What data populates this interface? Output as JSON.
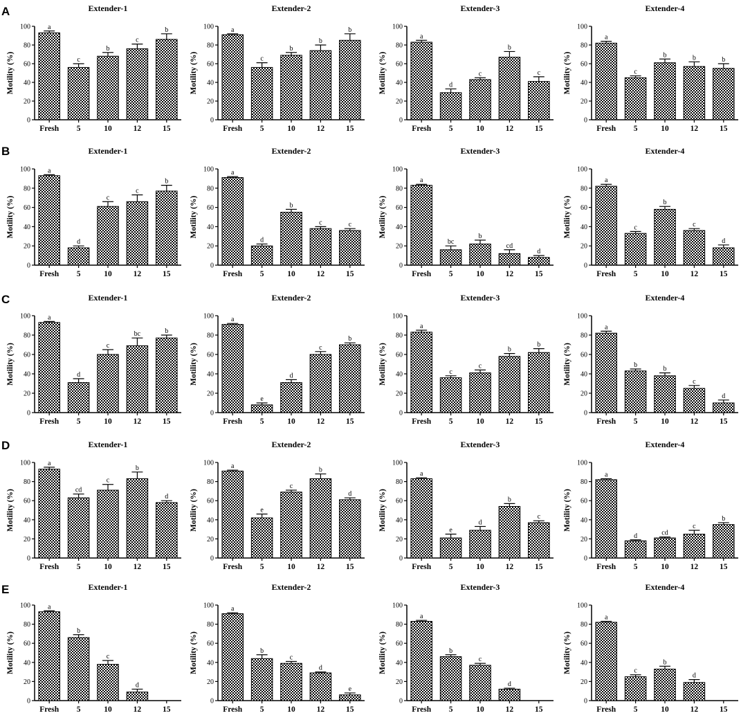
{
  "figure": {
    "row_labels": [
      "A",
      "B",
      "C",
      "D",
      "E"
    ],
    "colors": {
      "bar_fill": "#000000",
      "bar_background": "#ffffff",
      "axis": "#000000"
    }
  },
  "chart_data": [
    {
      "type": "bar",
      "row": "A",
      "title": "Extender-1",
      "ylabel": "Motility (%)",
      "xlabel": "",
      "ylim": [
        0,
        100
      ],
      "yticks": [
        0,
        20,
        40,
        60,
        80,
        100
      ],
      "categories": [
        "Fresh",
        "5",
        "10",
        "12",
        "15"
      ],
      "values": [
        93,
        56,
        68,
        76,
        86
      ],
      "errors": [
        2,
        4,
        4,
        5,
        6
      ],
      "letters": [
        "a",
        "c",
        "b",
        "c",
        "b"
      ]
    },
    {
      "type": "bar",
      "row": "A",
      "title": "Extender-2",
      "ylabel": "Motility (%)",
      "xlabel": "",
      "ylim": [
        0,
        100
      ],
      "yticks": [
        0,
        20,
        40,
        60,
        80,
        100
      ],
      "categories": [
        "Fresh",
        "5",
        "10",
        "12",
        "15"
      ],
      "values": [
        91,
        56,
        69,
        74,
        85
      ],
      "errors": [
        1,
        5,
        3,
        6,
        7
      ],
      "letters": [
        "a",
        "c",
        "b",
        "b",
        "b"
      ]
    },
    {
      "type": "bar",
      "row": "A",
      "title": "Extender-3",
      "ylabel": "Motility (%)",
      "xlabel": "",
      "ylim": [
        0,
        100
      ],
      "yticks": [
        0,
        20,
        40,
        60,
        80,
        100
      ],
      "categories": [
        "Fresh",
        "5",
        "10",
        "12",
        "15"
      ],
      "values": [
        83,
        29,
        43,
        67,
        41
      ],
      "errors": [
        2,
        4,
        2,
        6,
        5
      ],
      "letters": [
        "a",
        "d",
        "c",
        "b",
        "c"
      ]
    },
    {
      "type": "bar",
      "row": "A",
      "title": "Extender-4",
      "ylabel": "Motility (%)",
      "xlabel": "",
      "ylim": [
        0,
        100
      ],
      "yticks": [
        0,
        20,
        40,
        60,
        80,
        100
      ],
      "categories": [
        "Fresh",
        "5",
        "10",
        "12",
        "15"
      ],
      "values": [
        82,
        45,
        61,
        57,
        55
      ],
      "errors": [
        2,
        2,
        4,
        5,
        5
      ],
      "letters": [
        "a",
        "c",
        "b",
        "b",
        "b"
      ]
    },
    {
      "type": "bar",
      "row": "B",
      "title": "Extender-1",
      "ylabel": "Motility (%)",
      "xlabel": "",
      "ylim": [
        0,
        100
      ],
      "yticks": [
        0,
        20,
        40,
        60,
        80,
        100
      ],
      "categories": [
        "Fresh",
        "5",
        "10",
        "12",
        "15"
      ],
      "values": [
        93,
        18,
        61,
        66,
        77
      ],
      "errors": [
        1,
        2,
        5,
        7,
        6
      ],
      "letters": [
        "a",
        "d",
        "c",
        "c",
        "b"
      ]
    },
    {
      "type": "bar",
      "row": "B",
      "title": "Extender-2",
      "ylabel": "Motility (%)",
      "xlabel": "",
      "ylim": [
        0,
        100
      ],
      "yticks": [
        0,
        20,
        40,
        60,
        80,
        100
      ],
      "categories": [
        "Fresh",
        "5",
        "10",
        "12",
        "15"
      ],
      "values": [
        91,
        20,
        55,
        38,
        36
      ],
      "errors": [
        1,
        2,
        3,
        2,
        2
      ],
      "letters": [
        "a",
        "d",
        "b",
        "c",
        "c"
      ]
    },
    {
      "type": "bar",
      "row": "B",
      "title": "Extender-3",
      "ylabel": "Motility (%)",
      "xlabel": "",
      "ylim": [
        0,
        100
      ],
      "yticks": [
        0,
        20,
        40,
        60,
        80,
        100
      ],
      "categories": [
        "Fresh",
        "5",
        "10",
        "12",
        "15"
      ],
      "values": [
        83,
        16,
        22,
        12,
        8
      ],
      "errors": [
        1,
        4,
        4,
        4,
        2
      ],
      "letters": [
        "a",
        "bc",
        "b",
        "cd",
        "d"
      ]
    },
    {
      "type": "bar",
      "row": "B",
      "title": "Extender-4",
      "ylabel": "Motility (%)",
      "xlabel": "",
      "ylim": [
        0,
        100
      ],
      "yticks": [
        0,
        20,
        40,
        60,
        80,
        100
      ],
      "categories": [
        "Fresh",
        "5",
        "10",
        "12",
        "15"
      ],
      "values": [
        82,
        33,
        58,
        36,
        18
      ],
      "errors": [
        2,
        2,
        3,
        2,
        3
      ],
      "letters": [
        "a",
        "c",
        "b",
        "c",
        "d"
      ]
    },
    {
      "type": "bar",
      "row": "C",
      "title": "Extender-1",
      "ylabel": "Motility (%)",
      "xlabel": "",
      "ylim": [
        0,
        100
      ],
      "yticks": [
        0,
        20,
        40,
        60,
        80,
        100
      ],
      "categories": [
        "Fresh",
        "5",
        "10",
        "12",
        "15"
      ],
      "values": [
        93,
        31,
        60,
        69,
        77
      ],
      "errors": [
        1,
        4,
        5,
        8,
        3
      ],
      "letters": [
        "a",
        "d",
        "c",
        "bc",
        "b"
      ]
    },
    {
      "type": "bar",
      "row": "C",
      "title": "Extender-2",
      "ylabel": "Motility (%)",
      "xlabel": "",
      "ylim": [
        0,
        100
      ],
      "yticks": [
        0,
        20,
        40,
        60,
        80,
        100
      ],
      "categories": [
        "Fresh",
        "5",
        "10",
        "12",
        "15"
      ],
      "values": [
        91,
        8,
        31,
        60,
        70
      ],
      "errors": [
        1,
        2,
        3,
        3,
        2
      ],
      "letters": [
        "a",
        "e",
        "d",
        "c",
        "b"
      ]
    },
    {
      "type": "bar",
      "row": "C",
      "title": "Extender-3",
      "ylabel": "Motility (%)",
      "xlabel": "",
      "ylim": [
        0,
        100
      ],
      "yticks": [
        0,
        20,
        40,
        60,
        80,
        100
      ],
      "categories": [
        "Fresh",
        "5",
        "10",
        "12",
        "15"
      ],
      "values": [
        83,
        36,
        41,
        58,
        62
      ],
      "errors": [
        2,
        2,
        3,
        3,
        4
      ],
      "letters": [
        "a",
        "c",
        "c",
        "b",
        "b"
      ]
    },
    {
      "type": "bar",
      "row": "C",
      "title": "Extender-4",
      "ylabel": "Motility (%)",
      "xlabel": "",
      "ylim": [
        0,
        100
      ],
      "yticks": [
        0,
        20,
        40,
        60,
        80,
        100
      ],
      "categories": [
        "Fresh",
        "5",
        "10",
        "12",
        "15"
      ],
      "values": [
        82,
        43,
        38,
        25,
        10
      ],
      "errors": [
        2,
        2,
        3,
        3,
        3
      ],
      "letters": [
        "a",
        "b",
        "b",
        "c",
        "d"
      ]
    },
    {
      "type": "bar",
      "row": "D",
      "title": "Extender-1",
      "ylabel": "Motility (%)",
      "xlabel": "",
      "ylim": [
        0,
        100
      ],
      "yticks": [
        0,
        20,
        40,
        60,
        80,
        100
      ],
      "categories": [
        "Fresh",
        "5",
        "10",
        "12",
        "15"
      ],
      "values": [
        93,
        63,
        71,
        83,
        58
      ],
      "errors": [
        2,
        4,
        6,
        7,
        2
      ],
      "letters": [
        "a",
        "cd",
        "c",
        "b",
        "d"
      ]
    },
    {
      "type": "bar",
      "row": "D",
      "title": "Extender-2",
      "ylabel": "Motility (%)",
      "xlabel": "",
      "ylim": [
        0,
        100
      ],
      "yticks": [
        0,
        20,
        40,
        60,
        80,
        100
      ],
      "categories": [
        "Fresh",
        "5",
        "10",
        "12",
        "15"
      ],
      "values": [
        91,
        42,
        69,
        83,
        61
      ],
      "errors": [
        1,
        4,
        2,
        5,
        2
      ],
      "letters": [
        "a",
        "e",
        "c",
        "b",
        "d"
      ]
    },
    {
      "type": "bar",
      "row": "D",
      "title": "Extender-3",
      "ylabel": "Motility (%)",
      "xlabel": "",
      "ylim": [
        0,
        100
      ],
      "yticks": [
        0,
        20,
        40,
        60,
        80,
        100
      ],
      "categories": [
        "Fresh",
        "5",
        "10",
        "12",
        "15"
      ],
      "values": [
        83,
        21,
        29,
        54,
        37
      ],
      "errors": [
        1,
        4,
        4,
        3,
        2
      ],
      "letters": [
        "a",
        "e",
        "d",
        "b",
        "c"
      ]
    },
    {
      "type": "bar",
      "row": "D",
      "title": "Extender-4",
      "ylabel": "Motility (%)",
      "xlabel": "",
      "ylim": [
        0,
        100
      ],
      "yticks": [
        0,
        20,
        40,
        60,
        80,
        100
      ],
      "categories": [
        "Fresh",
        "5",
        "10",
        "12",
        "15"
      ],
      "values": [
        82,
        18,
        21,
        25,
        35
      ],
      "errors": [
        1,
        1,
        1,
        4,
        2
      ],
      "letters": [
        "a",
        "d",
        "cd",
        "c",
        "b"
      ]
    },
    {
      "type": "bar",
      "row": "E",
      "title": "Extender-1",
      "ylabel": "Motility (%)",
      "xlabel": "",
      "ylim": [
        0,
        100
      ],
      "yticks": [
        0,
        20,
        40,
        60,
        80,
        100
      ],
      "categories": [
        "Fresh",
        "5",
        "10",
        "12",
        "15"
      ],
      "values": [
        93,
        66,
        38,
        9,
        0
      ],
      "errors": [
        1,
        3,
        4,
        3,
        0
      ],
      "letters": [
        "a",
        "b",
        "c",
        "d",
        ""
      ]
    },
    {
      "type": "bar",
      "row": "E",
      "title": "Extender-2",
      "ylabel": "Motility (%)",
      "xlabel": "",
      "ylim": [
        0,
        100
      ],
      "yticks": [
        0,
        20,
        40,
        60,
        80,
        100
      ],
      "categories": [
        "Fresh",
        "5",
        "10",
        "12",
        "15"
      ],
      "values": [
        91,
        44,
        39,
        29,
        6
      ],
      "errors": [
        1,
        4,
        2,
        1,
        2
      ],
      "letters": [
        "a",
        "b",
        "c",
        "d",
        "e"
      ]
    },
    {
      "type": "bar",
      "row": "E",
      "title": "Extender-3",
      "ylabel": "Motility (%)",
      "xlabel": "",
      "ylim": [
        0,
        100
      ],
      "yticks": [
        0,
        20,
        40,
        60,
        80,
        100
      ],
      "categories": [
        "Fresh",
        "5",
        "10",
        "12",
        "15"
      ],
      "values": [
        83,
        46,
        37,
        12,
        0
      ],
      "errors": [
        1,
        2,
        2,
        1,
        0
      ],
      "letters": [
        "a",
        "b",
        "c",
        "d",
        ""
      ]
    },
    {
      "type": "bar",
      "row": "E",
      "title": "Extender-4",
      "ylabel": "Motility (%)",
      "xlabel": "",
      "ylim": [
        0,
        100
      ],
      "yticks": [
        0,
        20,
        40,
        60,
        80,
        100
      ],
      "categories": [
        "Fresh",
        "5",
        "10",
        "12",
        "15"
      ],
      "values": [
        82,
        25,
        33,
        19,
        0
      ],
      "errors": [
        1,
        2,
        3,
        3,
        0
      ],
      "letters": [
        "a",
        "c",
        "b",
        "d",
        ""
      ]
    }
  ]
}
